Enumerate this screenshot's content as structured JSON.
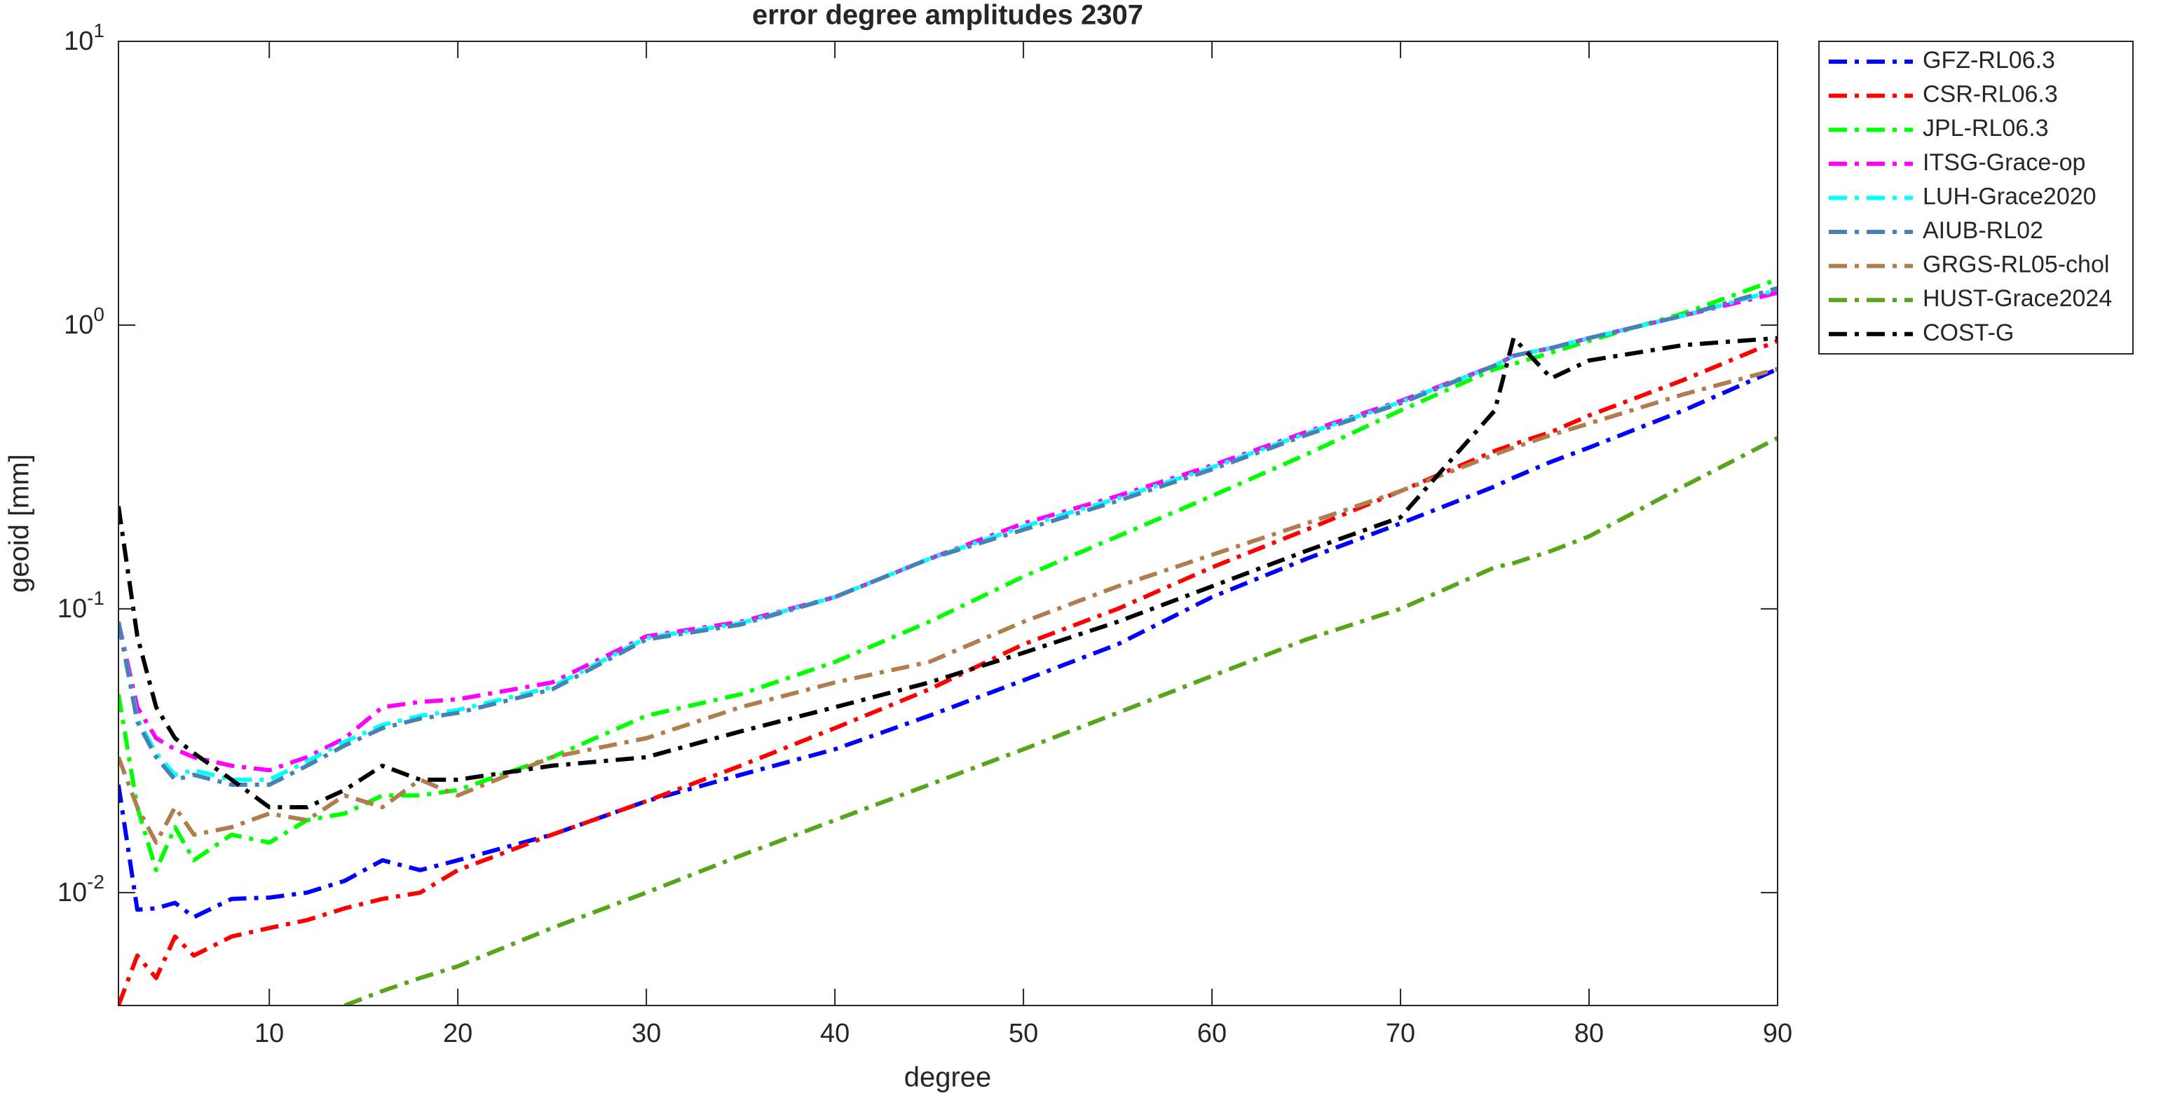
{
  "chart_data": {
    "type": "line",
    "title": "error degree amplitudes 2307",
    "xlabel": "degree",
    "ylabel": "geoid [mm]",
    "x": [
      2,
      3,
      4,
      5,
      6,
      8,
      10,
      12,
      14,
      16,
      18,
      20,
      25,
      30,
      35,
      40,
      45,
      50,
      55,
      60,
      65,
      70,
      75,
      76,
      78,
      80,
      85,
      90
    ],
    "xlim": [
      2,
      90
    ],
    "xticks": [
      10,
      20,
      30,
      40,
      50,
      60,
      70,
      80,
      90
    ],
    "ylim": [
      0.004,
      10
    ],
    "yscale": "log",
    "yticks": [
      {
        "value": 0.01,
        "label": "10",
        "exponent": "-2"
      },
      {
        "value": 0.1,
        "label": "10",
        "exponent": "-1"
      },
      {
        "value": 1,
        "label": "10",
        "exponent": "0"
      },
      {
        "value": 10,
        "label": "10",
        "exponent": "1"
      }
    ],
    "legend": "outside-upper-right",
    "series": [
      {
        "name": "GFZ-RL06.3",
        "color": "#0000ff",
        "values": [
          0.024,
          0.0087,
          0.0088,
          0.0092,
          0.0082,
          0.0095,
          0.0096,
          0.01,
          0.011,
          0.013,
          0.012,
          0.013,
          0.016,
          0.021,
          0.026,
          0.032,
          0.042,
          0.056,
          0.075,
          0.11,
          0.15,
          0.2,
          0.27,
          0.29,
          0.33,
          0.37,
          0.5,
          0.7
        ]
      },
      {
        "name": "CSR-RL06.3",
        "color": "#ff0000",
        "values": [
          0.004,
          0.006,
          0.005,
          0.007,
          0.006,
          0.007,
          0.0075,
          0.008,
          0.0088,
          0.0095,
          0.01,
          0.012,
          0.016,
          0.021,
          0.028,
          0.038,
          0.052,
          0.075,
          0.1,
          0.14,
          0.19,
          0.26,
          0.36,
          0.38,
          0.42,
          0.48,
          0.64,
          0.88
        ]
      },
      {
        "name": "JPL-RL06.3",
        "color": "#00ff00",
        "values": [
          0.05,
          0.02,
          0.012,
          0.017,
          0.013,
          0.016,
          0.015,
          0.018,
          0.019,
          0.022,
          0.022,
          0.023,
          0.03,
          0.042,
          0.05,
          0.065,
          0.09,
          0.13,
          0.18,
          0.25,
          0.35,
          0.5,
          0.7,
          0.73,
          0.8,
          0.88,
          1.1,
          1.45
        ]
      },
      {
        "name": "ITSG-Grace-op",
        "color": "#ff00ff",
        "values": [
          0.09,
          0.045,
          0.035,
          0.032,
          0.03,
          0.028,
          0.027,
          0.03,
          0.035,
          0.045,
          0.047,
          0.048,
          0.055,
          0.08,
          0.09,
          0.11,
          0.15,
          0.2,
          0.25,
          0.32,
          0.42,
          0.54,
          0.72,
          0.78,
          0.83,
          0.9,
          1.08,
          1.3
        ]
      },
      {
        "name": "LUH-Grace2020",
        "color": "#00ffff",
        "values": [
          0.09,
          0.041,
          0.031,
          0.026,
          0.027,
          0.025,
          0.025,
          0.029,
          0.034,
          0.039,
          0.042,
          0.044,
          0.053,
          0.079,
          0.089,
          0.11,
          0.15,
          0.195,
          0.245,
          0.315,
          0.415,
          0.535,
          0.72,
          0.78,
          0.83,
          0.9,
          1.08,
          1.33
        ]
      },
      {
        "name": "AIUB-RL02",
        "color": "#4682b4",
        "values": [
          0.09,
          0.04,
          0.03,
          0.025,
          0.026,
          0.024,
          0.024,
          0.028,
          0.033,
          0.038,
          0.041,
          0.043,
          0.052,
          0.078,
          0.088,
          0.11,
          0.15,
          0.19,
          0.24,
          0.31,
          0.41,
          0.53,
          0.72,
          0.78,
          0.83,
          0.9,
          1.08,
          1.35
        ]
      },
      {
        "name": "GRGS-RL05-chol",
        "color": "#b07d4d",
        "values": [
          0.03,
          0.02,
          0.015,
          0.02,
          0.016,
          0.017,
          0.019,
          0.018,
          0.022,
          0.02,
          0.025,
          0.022,
          0.03,
          0.035,
          0.045,
          0.055,
          0.065,
          0.09,
          0.12,
          0.155,
          0.2,
          0.26,
          0.35,
          0.37,
          0.41,
          0.45,
          0.57,
          0.7
        ]
      },
      {
        "name": "HUST-Grace2024",
        "color": "#56a51a",
        "values": [
          null,
          null,
          null,
          null,
          null,
          null,
          null,
          null,
          0.004,
          0.0045,
          0.005,
          0.0055,
          0.0075,
          0.01,
          0.0135,
          0.018,
          0.024,
          0.032,
          0.043,
          0.058,
          0.078,
          0.1,
          0.14,
          0.145,
          0.16,
          0.18,
          0.27,
          0.4
        ]
      },
      {
        "name": "COST-G",
        "color": "#000000",
        "values": [
          0.23,
          0.08,
          0.045,
          0.035,
          0.031,
          0.025,
          0.02,
          0.02,
          0.023,
          0.028,
          0.025,
          0.025,
          0.028,
          0.03,
          0.037,
          0.045,
          0.055,
          0.07,
          0.09,
          0.12,
          0.16,
          0.21,
          0.5,
          0.9,
          0.65,
          0.75,
          0.85,
          0.9
        ]
      }
    ]
  }
}
